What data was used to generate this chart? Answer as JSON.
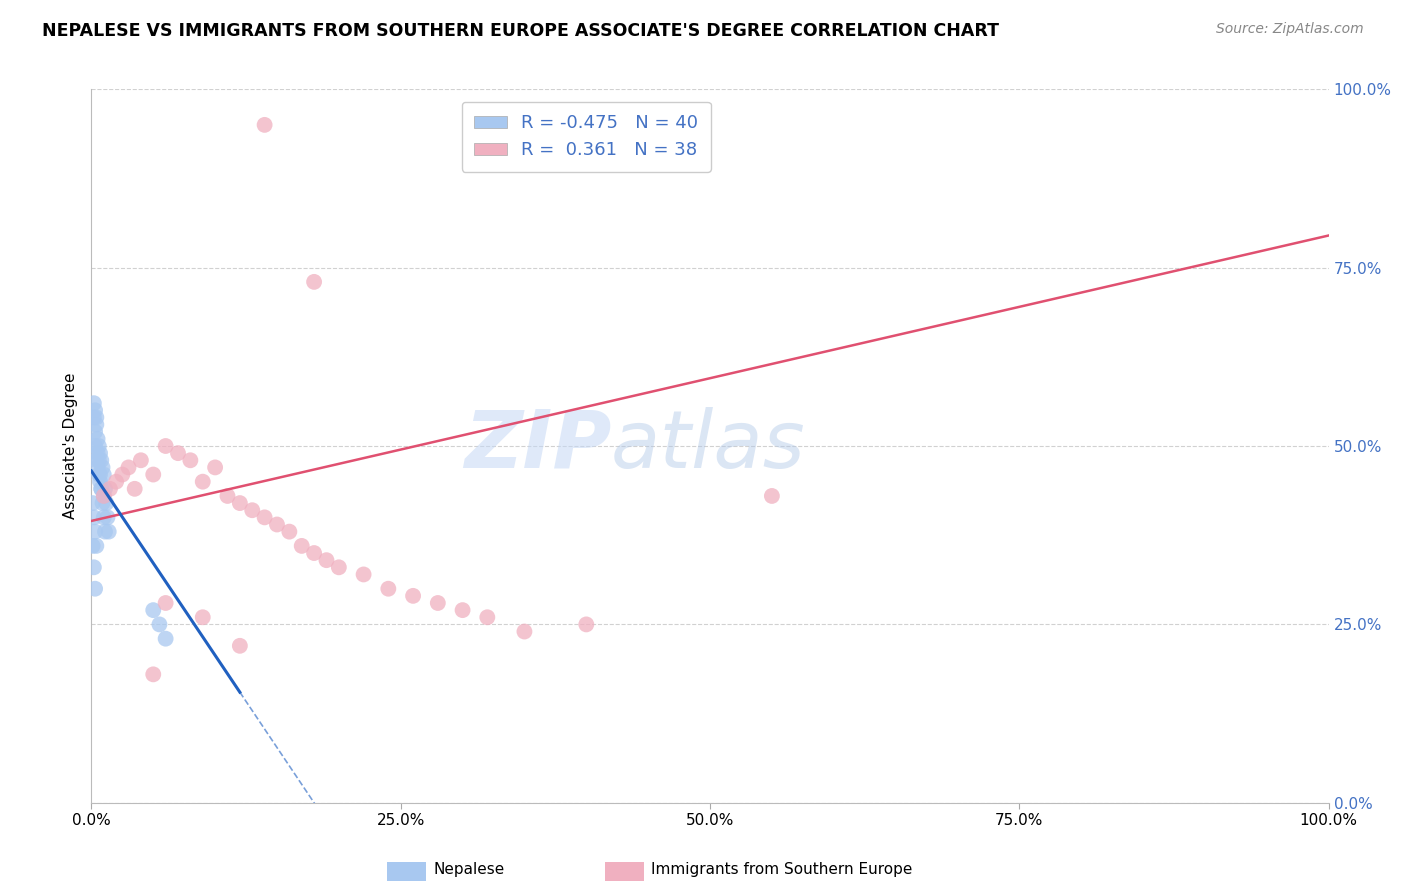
{
  "title": "NEPALESE VS IMMIGRANTS FROM SOUTHERN EUROPE ASSOCIATE'S DEGREE CORRELATION CHART",
  "source": "Source: ZipAtlas.com",
  "ylabel": "Associate's Degree",
  "watermark_zip": "ZIP",
  "watermark_atlas": "atlas",
  "legend_line1": "R = -0.475   N = 40",
  "legend_line2": "R =  0.361   N = 38",
  "xlim": [
    0.0,
    1.0
  ],
  "ylim": [
    0.0,
    1.0
  ],
  "blue_scatter_x": [
    0.002,
    0.003,
    0.003,
    0.004,
    0.004,
    0.005,
    0.005,
    0.006,
    0.006,
    0.007,
    0.007,
    0.008,
    0.008,
    0.009,
    0.01,
    0.01,
    0.011,
    0.012,
    0.013,
    0.014,
    0.002,
    0.003,
    0.004,
    0.005,
    0.006,
    0.007,
    0.008,
    0.009,
    0.01,
    0.011,
    0.001,
    0.002,
    0.003,
    0.004,
    0.05,
    0.055,
    0.06,
    0.001,
    0.002,
    0.003
  ],
  "blue_scatter_y": [
    0.54,
    0.52,
    0.5,
    0.53,
    0.48,
    0.51,
    0.47,
    0.5,
    0.46,
    0.49,
    0.45,
    0.48,
    0.44,
    0.47,
    0.46,
    0.43,
    0.44,
    0.42,
    0.4,
    0.38,
    0.56,
    0.55,
    0.54,
    0.49,
    0.48,
    0.46,
    0.44,
    0.42,
    0.4,
    0.38,
    0.42,
    0.4,
    0.38,
    0.36,
    0.27,
    0.25,
    0.23,
    0.36,
    0.33,
    0.3
  ],
  "pink_scatter_x": [
    0.01,
    0.015,
    0.02,
    0.025,
    0.03,
    0.035,
    0.04,
    0.05,
    0.06,
    0.07,
    0.08,
    0.09,
    0.1,
    0.11,
    0.12,
    0.13,
    0.14,
    0.15,
    0.16,
    0.17,
    0.18,
    0.19,
    0.2,
    0.22,
    0.24,
    0.26,
    0.28,
    0.3,
    0.32,
    0.35,
    0.14,
    0.18,
    0.55,
    0.06,
    0.09,
    0.4,
    0.12,
    0.05
  ],
  "pink_scatter_y": [
    0.43,
    0.44,
    0.45,
    0.46,
    0.47,
    0.44,
    0.48,
    0.46,
    0.5,
    0.49,
    0.48,
    0.45,
    0.47,
    0.43,
    0.42,
    0.41,
    0.4,
    0.39,
    0.38,
    0.36,
    0.35,
    0.34,
    0.33,
    0.32,
    0.3,
    0.29,
    0.28,
    0.27,
    0.26,
    0.24,
    0.95,
    0.73,
    0.43,
    0.28,
    0.26,
    0.25,
    0.22,
    0.18
  ],
  "blue_color": "#a8c8f0",
  "pink_color": "#f0b0c0",
  "blue_line_color": "#2060c0",
  "pink_line_color": "#e05070",
  "grid_color": "#cccccc",
  "right_tick_color": "#4472c4",
  "title_color": "#000000",
  "source_color": "#888888",
  "bg_color": "#ffffff",
  "pink_line_x0": 0.0,
  "pink_line_y0": 0.395,
  "pink_line_x1": 1.0,
  "pink_line_y1": 0.795,
  "blue_line_x0": 0.0,
  "blue_line_y0": 0.465,
  "blue_line_x1": 0.12,
  "blue_line_y1": 0.155
}
